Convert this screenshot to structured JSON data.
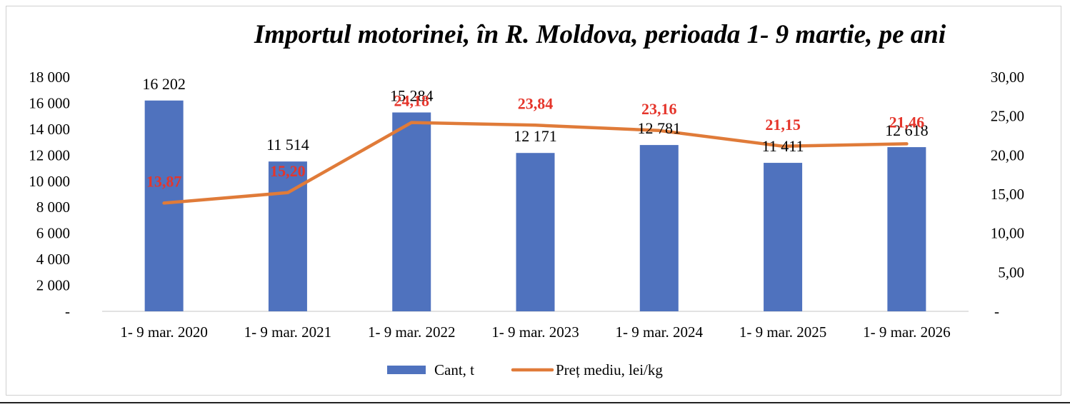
{
  "chart_data": {
    "type": "bar",
    "title": "Importul motorinei, în R. Moldova, perioada 1- 9 martie, pe ani",
    "categories": [
      "1- 9 mar. 2020",
      "1- 9 mar. 2021",
      "1- 9 mar. 2022",
      "1- 9 mar. 2023",
      "1- 9 mar. 2024",
      "1- 9 mar. 2025",
      "1- 9 mar. 2026"
    ],
    "series": [
      {
        "name": "Cant, t",
        "type": "bar",
        "axis": "left",
        "color": "#4f72be",
        "values": [
          16202,
          11514,
          15284,
          12171,
          12781,
          11411,
          12618
        ],
        "labels": [
          "16 202",
          "11 514",
          "15 284",
          "12 171",
          "12 781",
          "11 411",
          "12 618"
        ]
      },
      {
        "name": "Preț mediu, lei/kg",
        "type": "line",
        "axis": "right",
        "color": "#e07b39",
        "label_color": "#e5352b",
        "values": [
          13.87,
          15.2,
          24.18,
          23.84,
          23.16,
          21.15,
          21.46
        ],
        "labels": [
          "13,87",
          "15,20",
          "24,18",
          "23,84",
          "23,16",
          "21,15",
          "21,46"
        ]
      }
    ],
    "y_left": {
      "min": 0,
      "max": 18000,
      "step": 2000,
      "tick_labels": [
        "-",
        "2 000",
        "4 000",
        "6 000",
        "8 000",
        "10 000",
        "12 000",
        "14 000",
        "16 000",
        "18 000"
      ]
    },
    "y_right": {
      "min": 0,
      "max": 30,
      "step": 5,
      "tick_labels": [
        "-",
        "5,00",
        "10,00",
        "15,00",
        "20,00",
        "25,00",
        "30,00"
      ]
    },
    "grid": false,
    "legend_position": "bottom-center"
  }
}
